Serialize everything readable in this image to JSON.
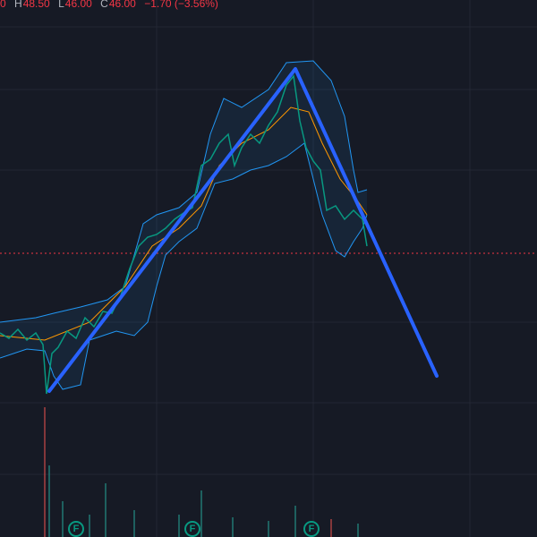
{
  "header": {
    "cut_label": "0",
    "ohlc": [
      {
        "key": "H",
        "value": "48.50"
      },
      {
        "key": "L",
        "value": "46.00"
      },
      {
        "key": "C",
        "value": "46.00"
      }
    ],
    "change": "−1.70 (−3.56%)"
  },
  "markers": [
    "F",
    "F",
    "F"
  ]
}
